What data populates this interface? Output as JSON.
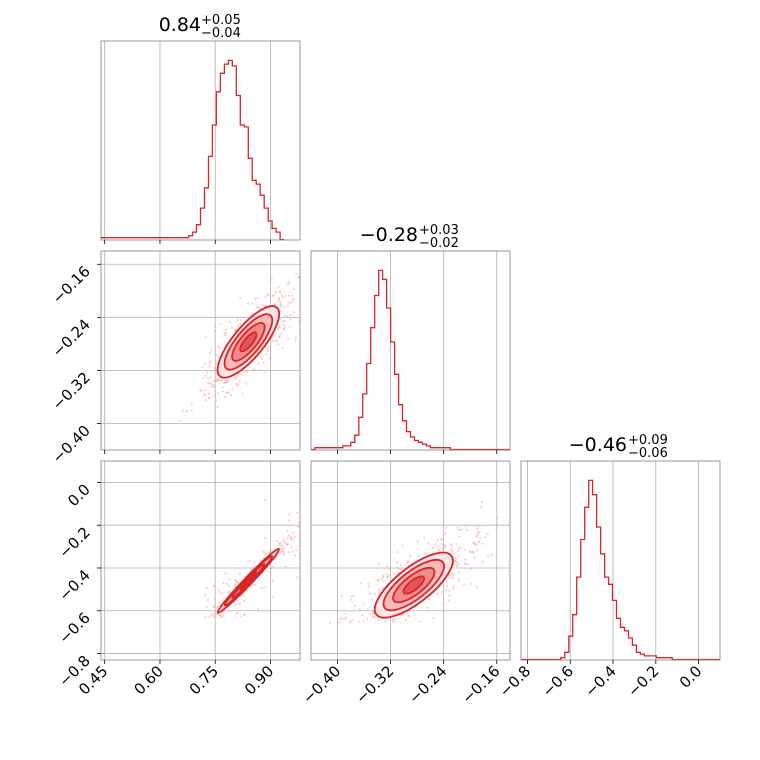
{
  "colors": {
    "accent": "#d62728",
    "scatter": "#f4a6a7",
    "grid": "#b0b0b0",
    "frame": "#7f7f7f"
  },
  "chart_data": {
    "type": "corner",
    "grid": true,
    "parameters": [
      {
        "median": "0.84",
        "plus": "+0.05",
        "minus": "−0.04",
        "range": [
          0.44,
          0.98
        ]
      },
      {
        "median": "−0.28",
        "plus": "+0.03",
        "minus": "−0.02",
        "range": [
          -0.44,
          -0.14
        ]
      },
      {
        "median": "−0.46",
        "plus": "+0.09",
        "minus": "−0.06",
        "range": [
          -0.83,
          0.1
        ]
      }
    ],
    "ticks": [
      {
        "values": [
          0.45,
          0.6,
          0.75,
          0.9
        ],
        "labels": [
          "0.45",
          "0.60",
          "0.75",
          "0.90"
        ]
      },
      {
        "values": [
          -0.4,
          -0.32,
          -0.24,
          -0.16
        ],
        "labels": [
          "−0.40",
          "−0.32",
          "−0.24",
          "−0.16"
        ]
      },
      {
        "values": [
          -0.8,
          -0.6,
          -0.4,
          -0.2,
          0.0
        ],
        "labels": [
          "−0.8",
          "−0.6",
          "−0.4",
          "−0.2",
          "0.0"
        ]
      }
    ],
    "histograms": [
      {
        "param": 0,
        "bins_start": 0.44,
        "bin_width": 0.0108,
        "counts": [
          1,
          1,
          1,
          1,
          1,
          1,
          1,
          1,
          1,
          1,
          1,
          1,
          1,
          1,
          1,
          1,
          1,
          1,
          1,
          1,
          1,
          1,
          2,
          4,
          8,
          17,
          28,
          45,
          62,
          80,
          90,
          95,
          97,
          94,
          78,
          62,
          61,
          44,
          32,
          30,
          24,
          17,
          10,
          6,
          4,
          0
        ]
      },
      {
        "param": 1,
        "bins_start": -0.44,
        "bin_width": 0.006,
        "counts": [
          0,
          1,
          1,
          1,
          1,
          1,
          1,
          1,
          2,
          2,
          4,
          8,
          18,
          31,
          48,
          68,
          86,
          100,
          95,
          79,
          60,
          42,
          25,
          16,
          10,
          7,
          5,
          4,
          3,
          2,
          1,
          1,
          1,
          1,
          1,
          0,
          0,
          0,
          0,
          0,
          0,
          0,
          0,
          0,
          0,
          0,
          0,
          0,
          0,
          0
        ]
      },
      {
        "param": 2,
        "bins_start": -0.83,
        "bin_width": 0.0186,
        "counts": [
          0,
          0,
          0,
          0,
          0,
          0,
          0,
          0,
          0,
          0,
          1,
          4,
          13,
          25,
          46,
          67,
          85,
          100,
          92,
          74,
          59,
          46,
          42,
          33,
          23,
          18,
          16,
          12,
          8,
          4,
          3,
          2,
          2,
          2,
          1,
          1,
          1,
          1,
          0,
          0,
          0,
          0,
          0,
          0,
          0,
          0,
          0,
          0,
          0,
          0
        ]
      }
    ],
    "joint_panels": [
      {
        "x_param": 0,
        "y_param": 1,
        "center": [
          0.84,
          -0.277
        ],
        "sigma": [
          0.034,
          0.022
        ],
        "correlation": 0.78,
        "scatter": {
          "count": 480,
          "xlim": [
            0.72,
            0.99
          ],
          "ylim": [
            -0.41,
            -0.15
          ],
          "slope": 0.41
        }
      },
      {
        "x_param": 0,
        "y_param": 2,
        "center": [
          0.84,
          -0.46
        ],
        "sigma": [
          0.034,
          0.061
        ],
        "correlation": 0.985,
        "scatter": {
          "count": 420,
          "xlim": [
            0.72,
            0.99
          ],
          "ylim": [
            -0.63,
            -0.02
          ],
          "slope": 1.75
        }
      },
      {
        "x_param": 1,
        "y_param": 2,
        "center": [
          -0.285,
          -0.48
        ],
        "sigma": [
          0.024,
          0.062
        ],
        "correlation": 0.75,
        "scatter": {
          "count": 520,
          "xlim": [
            -0.42,
            -0.18
          ],
          "ylim": [
            -0.66,
            -0.08
          ],
          "slope": 1.9
        }
      }
    ]
  }
}
